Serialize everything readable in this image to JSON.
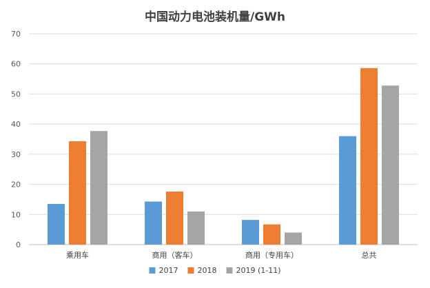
{
  "chart_data": {
    "type": "bar",
    "title": "中国动力电池装机量/GWh",
    "xlabel": "",
    "ylabel": "",
    "categories": [
      "乘用车",
      "商用（客车）",
      "商用（专用车）",
      "总共"
    ],
    "series": [
      {
        "name": "2017",
        "color": "#5b9bd5",
        "values": [
          13.5,
          14.3,
          8.2,
          36.0
        ]
      },
      {
        "name": "2018",
        "color": "#ed7d31",
        "values": [
          34.3,
          17.6,
          6.7,
          58.6
        ]
      },
      {
        "name": "2019 (1-11)",
        "color": "#a5a5a5",
        "values": [
          37.7,
          11.0,
          4.0,
          52.8
        ]
      }
    ],
    "ylim": [
      0,
      70
    ],
    "yticks": [
      0,
      10,
      20,
      30,
      40,
      50,
      60,
      70
    ],
    "grid": true,
    "legend_position": "bottom"
  }
}
